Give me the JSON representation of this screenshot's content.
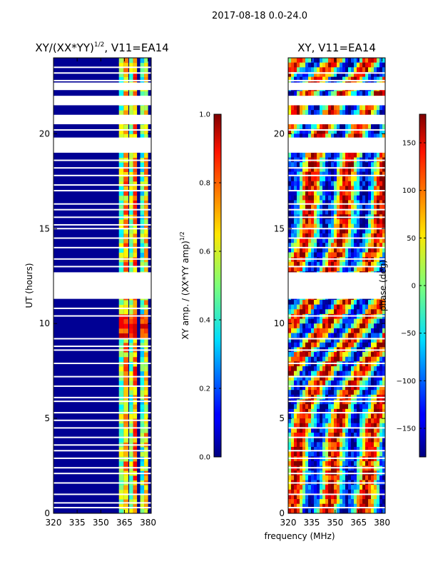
{
  "figure_title": "2017-08-18 0.0-24.0",
  "colors": {
    "background": "#ffffff",
    "frame": "#000000",
    "gap": "#ffffff",
    "low": "#00008b",
    "band": "#39d0a0",
    "band_hi": "#ffd400",
    "hot": "#e8401a"
  },
  "chart_data": [
    {
      "type": "heatmap",
      "title": "XY/(XX*YY)",
      "title_suffix": ", V11=EA14",
      "title_superscript": "1/2",
      "xlabel": "",
      "ylabel": "UT (hours)",
      "xlim": [
        320,
        382
      ],
      "ylim": [
        0,
        24
      ],
      "xticks": [
        "320",
        "335",
        "350",
        "365",
        "380"
      ],
      "xtick_values": [
        320,
        335,
        350,
        365,
        380
      ],
      "yticks": [
        "0",
        "5",
        "10",
        "15",
        "20"
      ],
      "ytick_values": [
        0,
        5,
        10,
        15,
        20
      ],
      "background_value": 0.0,
      "active_bands": [
        {
          "x0": 361.5,
          "x1": 364.5,
          "value": 0.5
        },
        {
          "x0": 364.5,
          "x1": 367.5,
          "value": 0.7
        },
        {
          "x0": 368.0,
          "x1": 370.5,
          "value": 0.5
        },
        {
          "x0": 370.5,
          "x1": 373.0,
          "value": 0.75
        },
        {
          "x0": 375.0,
          "x1": 377.5,
          "value": 0.45
        },
        {
          "x0": 377.5,
          "x1": 380.0,
          "value": 0.65
        }
      ],
      "flagged_time_ranges": [
        [
          11.3,
          12.7
        ],
        [
          19.0,
          19.8
        ],
        [
          20.5,
          21.0
        ],
        [
          21.5,
          22.0
        ],
        [
          22.3,
          22.7
        ]
      ],
      "flagged_lines": [
        0.3,
        0.55,
        1.0,
        1.6,
        2.1,
        2.4,
        2.9,
        3.3,
        3.6,
        4.0,
        4.5,
        4.9,
        5.3,
        5.9,
        6.1,
        6.7,
        7.2,
        7.9,
        8.6,
        8.8,
        9.2,
        10.4,
        10.8,
        13.0,
        13.4,
        14.0,
        14.5,
        15.0,
        15.2,
        15.6,
        16.0,
        16.3,
        17.0,
        17.3,
        17.8,
        18.2,
        18.6,
        20.2,
        22.8,
        23.2,
        23.5
      ],
      "hot_time_range": [
        9.2,
        10.5
      ],
      "hot_value": 0.85
    },
    {
      "type": "heatmap",
      "title": "XY, V11=EA14",
      "xlabel": "frequency (MHz)",
      "ylabel": "",
      "xlim": [
        320,
        382
      ],
      "ylim": [
        0,
        24
      ],
      "xticks": [
        "320",
        "335",
        "350",
        "365",
        "380"
      ],
      "xtick_values": [
        320,
        335,
        350,
        365,
        380
      ],
      "yticks": [
        "0",
        "5",
        "10",
        "15",
        "20"
      ],
      "ytick_values": [
        0,
        5,
        10,
        15,
        20
      ],
      "flagged_time_ranges": [
        [
          11.3,
          12.7
        ],
        [
          19.0,
          19.8
        ],
        [
          20.5,
          21.0
        ],
        [
          21.5,
          22.0
        ],
        [
          22.3,
          22.7
        ]
      ],
      "flagged_lines": [
        0.3,
        1.0,
        1.6,
        2.1,
        2.4,
        2.9,
        3.3,
        4.0,
        4.5,
        5.3,
        5.9,
        6.1,
        6.7,
        7.2,
        7.9,
        8.6,
        9.2,
        10.4,
        13.0,
        13.4,
        14.0,
        14.5,
        15.0,
        15.6,
        16.0,
        16.3,
        17.0,
        17.8,
        18.2,
        18.6,
        20.2,
        22.8,
        23.2
      ],
      "phase_range_deg": [
        -180,
        180
      ]
    }
  ],
  "colorbars": [
    {
      "label": "XY amp. / (XX*YY amp)",
      "label_superscript": "1/2",
      "range": [
        0.0,
        1.0
      ],
      "ticks": [
        "0.0",
        "0.2",
        "0.4",
        "0.6",
        "0.8",
        "1.0"
      ],
      "tick_values": [
        0.0,
        0.2,
        0.4,
        0.6,
        0.8,
        1.0
      ]
    },
    {
      "label": "phase (deg)",
      "range": [
        -180,
        180
      ],
      "ticks": [
        "−150",
        "−100",
        "−50",
        "0",
        "50",
        "100",
        "150"
      ],
      "tick_values": [
        -150,
        -100,
        -50,
        0,
        50,
        100,
        150
      ]
    }
  ]
}
